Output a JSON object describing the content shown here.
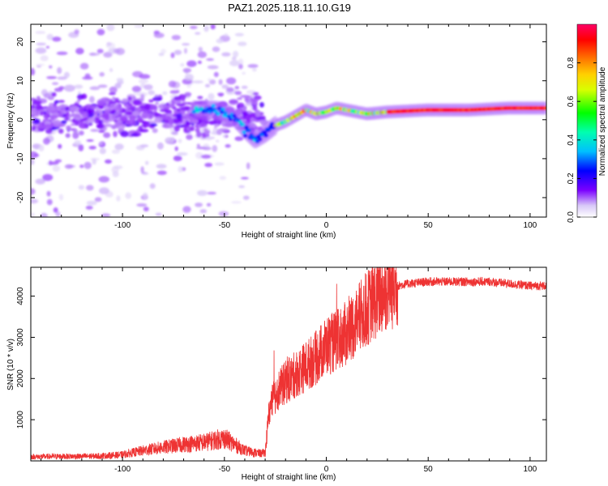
{
  "title": "PAZ1.2025.118.11.10.G19",
  "chart_data": [
    {
      "type": "heatmap",
      "xlabel": "Height of straight line (km)",
      "ylabel": "Frequency (Hz)",
      "xlim": [
        -145,
        108
      ],
      "ylim": [
        -25,
        24.5
      ],
      "xticks": [
        -100,
        -50,
        0,
        50,
        100
      ],
      "yticks": [
        -20,
        -10,
        0,
        10,
        20
      ],
      "colorbar": {
        "label": "Normalized spectral amplitude",
        "range": [
          0,
          1
        ],
        "ticks": [
          0.0,
          0.2,
          0.4,
          0.6,
          0.8
        ]
      },
      "ridge": {
        "description": "frequency of dominant spectral ridge vs height",
        "x": [
          -60,
          -55,
          -50,
          -45,
          -40,
          -35,
          -30,
          -25,
          -20,
          -15,
          -10,
          -5,
          0,
          5,
          10,
          20,
          30,
          50,
          70,
          90,
          108
        ],
        "freq_hz": [
          2.5,
          2.5,
          2.0,
          0.5,
          -2.5,
          -5.0,
          -3.5,
          -1.5,
          -0.5,
          1.0,
          2.5,
          1.5,
          2.0,
          3.0,
          2.5,
          1.5,
          2.0,
          2.5,
          2.5,
          3.0,
          3.0
        ]
      }
    },
    {
      "type": "line",
      "xlabel": "Height of straight line (km)",
      "ylabel": "SNR (10 * v/v)",
      "xlim": [
        -145,
        108
      ],
      "ylim": [
        0,
        4700
      ],
      "xticks": [
        -100,
        -50,
        0,
        50,
        100
      ],
      "yticks": [
        1000,
        2000,
        3000,
        4000
      ],
      "series": [
        {
          "name": "SNR",
          "color": "#ee3333",
          "x": [
            -145,
            -130,
            -120,
            -110,
            -100,
            -90,
            -80,
            -70,
            -60,
            -50,
            -45,
            -40,
            -35,
            -32,
            -30,
            -28,
            -26,
            -24,
            -22,
            -20,
            -15,
            -10,
            -5,
            0,
            5,
            10,
            15,
            20,
            25,
            30,
            35,
            40,
            50,
            60,
            70,
            80,
            90,
            100,
            108
          ],
          "y": [
            100,
            110,
            110,
            120,
            150,
            250,
            330,
            400,
            450,
            550,
            400,
            250,
            200,
            180,
            200,
            1200,
            1500,
            1700,
            1800,
            1900,
            2100,
            2300,
            2500,
            2800,
            2900,
            3100,
            3400,
            3700,
            3950,
            4150,
            4250,
            4300,
            4350,
            4350,
            4350,
            4350,
            4300,
            4250,
            4250
          ]
        }
      ]
    }
  ]
}
